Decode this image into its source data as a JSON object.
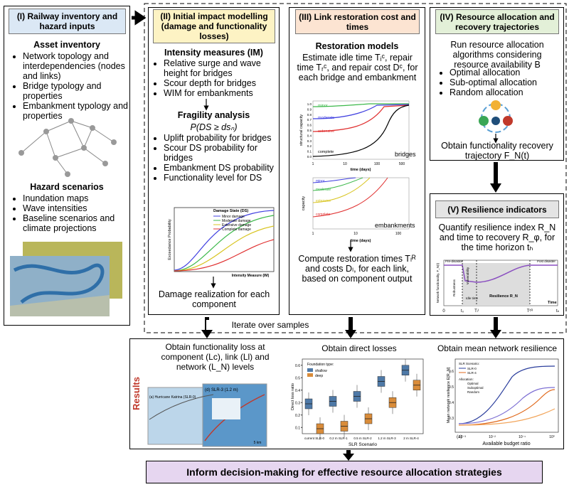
{
  "panel1": {
    "title": "(I) Railway inventory and hazard inputs",
    "asset_heading": "Asset inventory",
    "asset_items": [
      "Network topology and interdependencies (nodes and links)",
      "Bridge typology and properties",
      "Embankment typology and properties"
    ],
    "hazard_heading": "Hazard scenarios",
    "hazard_items": [
      "Inundation maps",
      "Wave intensities",
      "Baseline scenarios and climate projections"
    ]
  },
  "panel2": {
    "title": "(II) Initial impact modelling (damage and functionality losses)",
    "im_heading": "Intensity measures (IM)",
    "im_items": [
      "Relative surge and wave height for bridges",
      "Scour depth for bridges",
      "WIM for embankments"
    ],
    "fragility_heading": "Fragility analysis",
    "formula": "P(DS ≥ dsₙ)",
    "fragility_items": [
      "Uplift probability for bridges",
      "Scour DS probability for bridges",
      "Embankment DS probability",
      "Functionality level for DS"
    ],
    "chart": {
      "legend_title": "Damage State (DS)",
      "legend": [
        "Minor damage",
        "Moderate damage",
        "Extensive damage",
        "Complete damage"
      ],
      "y_label": "Exceedance Probability",
      "x_label": "Intensity Measure (IM)"
    },
    "result": "Damage realization for each component"
  },
  "panel3": {
    "title": "(III) Link restoration cost and times",
    "heading": "Restoration models",
    "text": "Estimate idle time Tᵢᶜ, repair time Tᵣᶜ, and repair cost Dᶜ, for each bridge and embankment",
    "bridge_chart": {
      "states": [
        "minor",
        "moderate",
        "extensive",
        "complete"
      ],
      "label": "bridges",
      "y_label": "structural capacity",
      "x_label": "time (days)",
      "yticks": [
        "0.0",
        "0.1",
        "0.2",
        "0.3",
        "0.4",
        "0.5",
        "0.6",
        "0.7",
        "0.8",
        "0.9",
        "1.0"
      ],
      "xticks": [
        "1",
        "10",
        "100",
        "500"
      ]
    },
    "embankment_chart": {
      "states": [
        "minor",
        "moderate",
        "extensive",
        "complete"
      ],
      "label": "embankments",
      "y_label": "capacity",
      "x_label": "time (days)",
      "xticks": [
        "1",
        "10",
        "100"
      ]
    },
    "result": "Compute restoration times Tₗᴿ and costs Dₗ, for each link, based on component output"
  },
  "panel4": {
    "title": "(IV) Resource allocation and recovery trajectories",
    "text": "Run resource allocation algorithms considering resource availability B",
    "items": [
      "Optimal allocation",
      "Sub-optimal allocation",
      "Random allocation"
    ],
    "result": "Obtain functionality recovery trajectory F_N(t)"
  },
  "panel5": {
    "title": "(V) Resilience indicators",
    "text": "Quantify resilience index R_N and time to recovery R_φ, for the time horizon tₕ",
    "chart": {
      "y_label": "Network functionality, F_N(t)",
      "x_label": "Time",
      "pre": "Pre-disaster",
      "post": "Post disaster",
      "robustness": "Robustness",
      "vulnerability": "Vulnerability",
      "idle": "Idle time",
      "resilience": "Resilience R_N",
      "ticks": [
        "0",
        "t₀",
        "Tₗᴵ",
        "Tᶜᴿ",
        "tₕ"
      ]
    }
  },
  "iterate": "Iterate over samples",
  "results": {
    "label": "Results",
    "col1": {
      "heading": "Obtain functionality loss at component (Lc), link (Ll) and network (L_N) levels",
      "map_a": "(a) Hurricane Katrina (SLR-0)",
      "map_d": "(d) SLR-3 (1.2 m)",
      "scale": "5 km"
    },
    "col2": {
      "heading": "Obtain direct losses",
      "legend_title": "Foundation type:",
      "y_label": "Direct loss ratio",
      "x_label": "SLR Scenario",
      "categories": [
        "current SLR-0",
        "0.2 m SLR-1",
        "0.5 m SLR-2",
        "1.2 m SLR-3",
        "2 m SLR-4"
      ],
      "ylim": [
        0.05,
        0.65
      ],
      "yticks": [
        0.1,
        0.2,
        0.3,
        0.4,
        0.5,
        0.6
      ],
      "series": [
        {
          "name": "shallow",
          "color": "#4e79a7",
          "values": [
            0.29,
            0.31,
            0.35,
            0.47,
            0.56
          ]
        },
        {
          "name": "deep",
          "color": "#d98c3a",
          "values": [
            0.09,
            0.11,
            0.17,
            0.3,
            0.44
          ]
        }
      ]
    },
    "col3": {
      "heading": "Obtain mean network resilience",
      "y_label": "Mean network resilience E[R_N]",
      "x_label": "Available budget ratio",
      "panel": "(a)",
      "slr_title": "SLR Scenario:",
      "slr": [
        "SLR-0",
        "SLR-4"
      ],
      "alloc_title": "Allocation:",
      "alloc": [
        "Optimal",
        "Suboptimal",
        "Random"
      ],
      "xticks": [
        "10⁻³",
        "10⁻²",
        "10⁻¹",
        "10⁰"
      ],
      "yticks": [
        "0.3",
        "0.4",
        "0.5",
        "0.6"
      ]
    }
  },
  "decision": "Inform decision-making for effective resource allocation strategies"
}
